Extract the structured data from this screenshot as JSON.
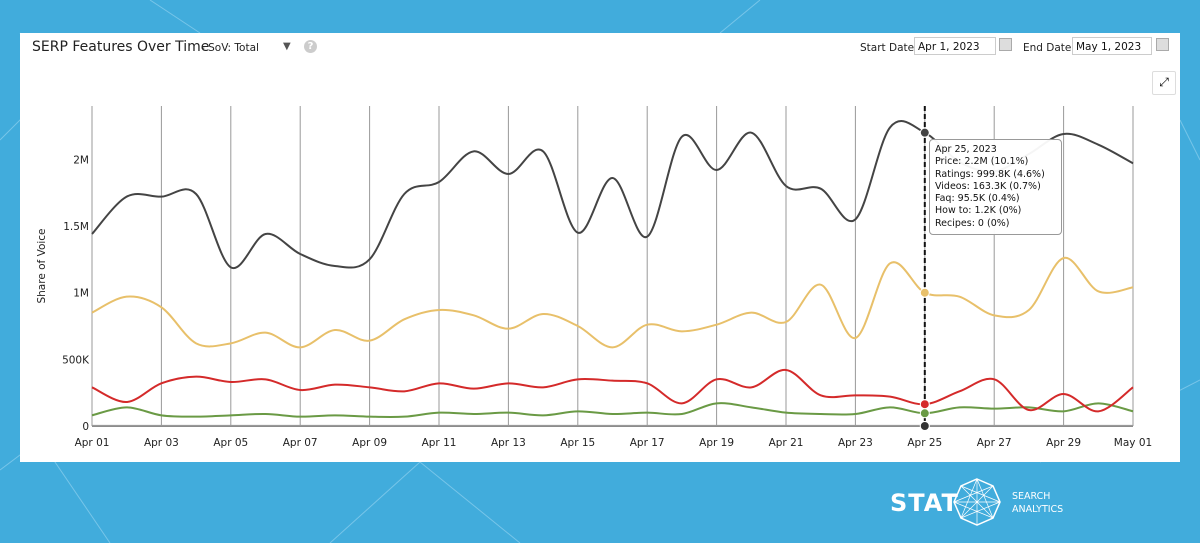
{
  "header": {
    "title": "SERP Features Over Time",
    "metric_select": "- SoV: Total",
    "help_icon": "question-icon",
    "start_label": "Start Date:",
    "start_value": "Apr 1, 2023",
    "end_label": "End Date:",
    "end_value": "May 1, 2023"
  },
  "tooltip": {
    "title": "Apr 25, 2023",
    "lines": [
      "Price: 2.2M (10.1%)",
      "Ratings: 999.8K (4.6%)",
      "Videos: 163.3K (0.7%)",
      "Faq: 95.5K (0.4%)",
      "How to: 1.2K (0%)",
      "Recipes: 0 (0%)"
    ]
  },
  "logo": {
    "brand": "STAT",
    "sub1": "SEARCH",
    "sub2": "ANALYTICS"
  },
  "chart_data": {
    "type": "line",
    "ylabel": "Share of Voice",
    "ylim": [
      0,
      2400000
    ],
    "yticks": [
      0,
      500000,
      1000000,
      1500000,
      2000000
    ],
    "ytick_labels": [
      "0",
      "500K",
      "1M",
      "1.5M",
      "2M"
    ],
    "xtick_labels": [
      "Apr 01",
      "Apr 03",
      "Apr 05",
      "Apr 07",
      "Apr 09",
      "Apr 11",
      "Apr 13",
      "Apr 15",
      "Apr 17",
      "Apr 19",
      "Apr 21",
      "Apr 23",
      "Apr 25",
      "Apr 27",
      "Apr 29",
      "May 01"
    ],
    "x": [
      "Apr 01",
      "Apr 02",
      "Apr 03",
      "Apr 04",
      "Apr 05",
      "Apr 06",
      "Apr 07",
      "Apr 08",
      "Apr 09",
      "Apr 10",
      "Apr 11",
      "Apr 12",
      "Apr 13",
      "Apr 14",
      "Apr 15",
      "Apr 16",
      "Apr 17",
      "Apr 18",
      "Apr 19",
      "Apr 20",
      "Apr 21",
      "Apr 22",
      "Apr 23",
      "Apr 24",
      "Apr 25",
      "Apr 26",
      "Apr 27",
      "Apr 28",
      "Apr 29",
      "Apr 30",
      "May 01"
    ],
    "highlight": "Apr 25",
    "grid": "vertical",
    "series": [
      {
        "name": "Price",
        "color": "#444444",
        "values": [
          1440000,
          1720000,
          1720000,
          1740000,
          1190000,
          1440000,
          1290000,
          1200000,
          1250000,
          1740000,
          1830000,
          2060000,
          1890000,
          2060000,
          1450000,
          1860000,
          1420000,
          2170000,
          1920000,
          2200000,
          1800000,
          1780000,
          1550000,
          2240000,
          2200000,
          1980000,
          1910000,
          2040000,
          2190000,
          2110000,
          1970000
        ]
      },
      {
        "name": "Ratings",
        "color": "#e8c06a",
        "values": [
          850000,
          970000,
          890000,
          620000,
          620000,
          700000,
          590000,
          720000,
          640000,
          800000,
          870000,
          830000,
          730000,
          840000,
          750000,
          590000,
          760000,
          710000,
          760000,
          850000,
          780000,
          1060000,
          660000,
          1220000,
          999800,
          970000,
          830000,
          870000,
          1260000,
          1010000,
          1040000
        ]
      },
      {
        "name": "Videos",
        "color": "#d42a2a",
        "values": [
          290000,
          180000,
          320000,
          370000,
          330000,
          350000,
          270000,
          310000,
          290000,
          260000,
          320000,
          280000,
          320000,
          290000,
          350000,
          340000,
          320000,
          170000,
          350000,
          290000,
          420000,
          230000,
          230000,
          220000,
          163300,
          260000,
          350000,
          120000,
          240000,
          110000,
          290000
        ]
      },
      {
        "name": "Faq",
        "color": "#6a9a45",
        "values": [
          80000,
          140000,
          80000,
          70000,
          80000,
          90000,
          70000,
          80000,
          70000,
          70000,
          100000,
          90000,
          100000,
          80000,
          110000,
          90000,
          100000,
          90000,
          170000,
          140000,
          100000,
          90000,
          90000,
          140000,
          95500,
          140000,
          130000,
          140000,
          110000,
          170000,
          110000
        ]
      },
      {
        "name": "How to",
        "color": "#999999",
        "values": [
          1200,
          1200,
          1200,
          1200,
          1200,
          1200,
          1200,
          1200,
          1200,
          1200,
          1200,
          1200,
          1200,
          1200,
          1200,
          1200,
          1200,
          1200,
          1200,
          1200,
          1200,
          1200,
          1200,
          1200,
          1200,
          1200,
          1200,
          1200,
          1200,
          1200,
          1200
        ]
      },
      {
        "name": "Recipes",
        "color": "#333333",
        "values": [
          0,
          0,
          0,
          0,
          0,
          0,
          0,
          0,
          0,
          0,
          0,
          0,
          0,
          0,
          0,
          0,
          0,
          0,
          0,
          0,
          0,
          0,
          0,
          0,
          0,
          0,
          0,
          0,
          0,
          0,
          0
        ]
      }
    ]
  }
}
